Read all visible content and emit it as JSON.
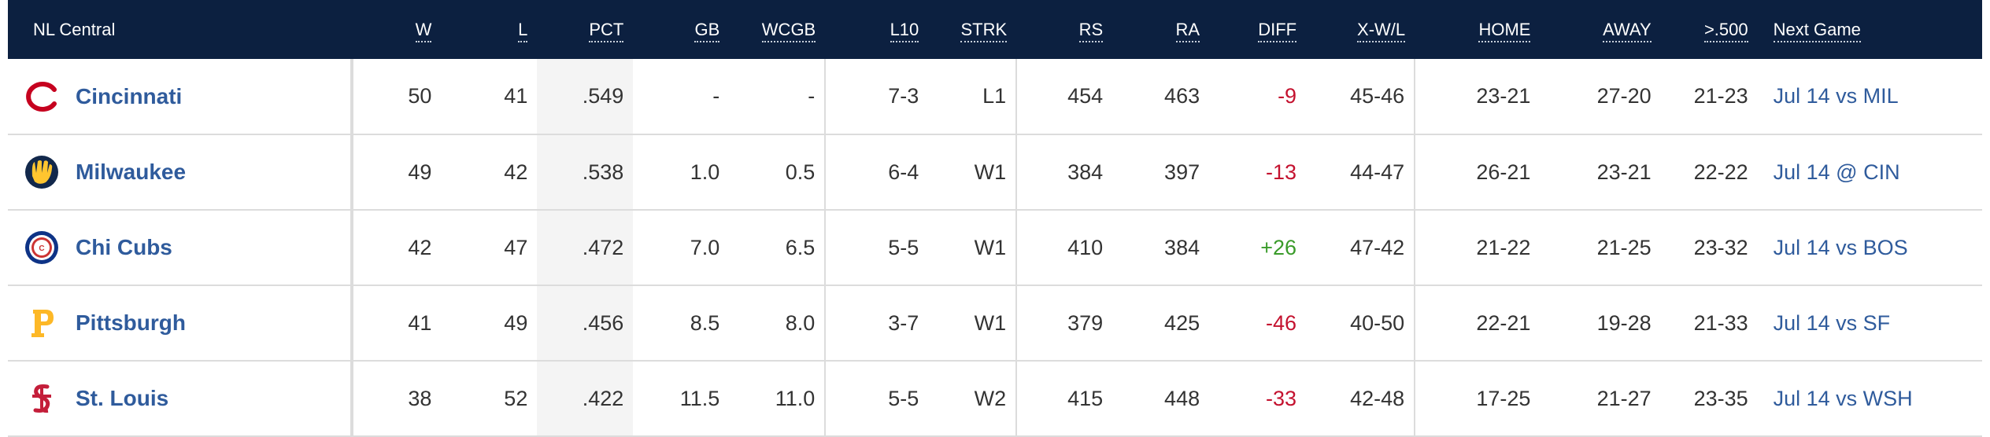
{
  "headers": {
    "team": "NL Central",
    "w": "W",
    "l": "L",
    "pct": "PCT",
    "gb": "GB",
    "wcgb": "WCGB",
    "l10": "L10",
    "strk": "STRK",
    "rs": "RS",
    "ra": "RA",
    "diff": "DIFF",
    "xwl": "X-W/L",
    "home": "HOME",
    "away": "AWAY",
    "over500": ">.500",
    "next": "Next Game"
  },
  "colors": {
    "header_bg": "#0c2040",
    "team_link": "#2f5b9c",
    "negative": "#c4122f",
    "positive": "#3a9b2a"
  },
  "rows": [
    {
      "logo": "reds-c-logo-icon",
      "team": "Cincinnati",
      "w": "50",
      "l": "41",
      "pct": ".549",
      "gb": "-",
      "wcgb": "-",
      "l10": "7-3",
      "strk": "L1",
      "rs": "454",
      "ra": "463",
      "diff": "-9",
      "xwl": "45-46",
      "home": "23-21",
      "away": "27-20",
      "over500": "21-23",
      "next": "Jul 14 vs MIL"
    },
    {
      "logo": "brewers-glove-logo-icon",
      "team": "Milwaukee",
      "w": "49",
      "l": "42",
      "pct": ".538",
      "gb": "1.0",
      "wcgb": "0.5",
      "l10": "6-4",
      "strk": "W1",
      "rs": "384",
      "ra": "397",
      "diff": "-13",
      "xwl": "44-47",
      "home": "26-21",
      "away": "23-21",
      "over500": "22-22",
      "next": "Jul 14 @ CIN"
    },
    {
      "logo": "cubs-roundel-logo-icon",
      "team": "Chi Cubs",
      "w": "42",
      "l": "47",
      "pct": ".472",
      "gb": "7.0",
      "wcgb": "6.5",
      "l10": "5-5",
      "strk": "W1",
      "rs": "410",
      "ra": "384",
      "diff": "+26",
      "xwl": "47-42",
      "home": "21-22",
      "away": "21-25",
      "over500": "23-32",
      "next": "Jul 14 vs BOS"
    },
    {
      "logo": "pirates-p-logo-icon",
      "team": "Pittsburgh",
      "w": "41",
      "l": "49",
      "pct": ".456",
      "gb": "8.5",
      "wcgb": "8.0",
      "l10": "3-7",
      "strk": "W1",
      "rs": "379",
      "ra": "425",
      "diff": "-46",
      "xwl": "40-50",
      "home": "22-21",
      "away": "19-28",
      "over500": "21-33",
      "next": "Jul 14 vs SF"
    },
    {
      "logo": "cardinals-stl-logo-icon",
      "team": "St. Louis",
      "w": "38",
      "l": "52",
      "pct": ".422",
      "gb": "11.5",
      "wcgb": "11.0",
      "l10": "5-5",
      "strk": "W2",
      "rs": "415",
      "ra": "448",
      "diff": "-33",
      "xwl": "42-48",
      "home": "17-25",
      "away": "21-27",
      "over500": "23-35",
      "next": "Jul 14 vs WSH"
    }
  ]
}
